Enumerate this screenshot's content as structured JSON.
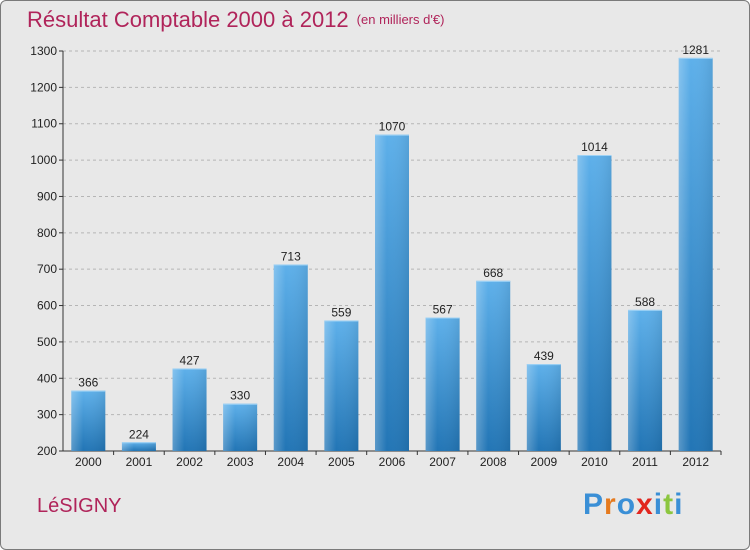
{
  "title": "Résultat Comptable 2000 à 2012",
  "subtitle": "(en milliers d'€)",
  "town": "LéSIGNY",
  "logo": {
    "text": "Proxiti",
    "colors": [
      "#3a8fd6",
      "#e57a1e",
      "#3a8fd6",
      "#e2261e",
      "#3a8fd6",
      "#8cc63f",
      "#3a8fd6"
    ]
  },
  "colors": {
    "title": "#b0245a",
    "bar_light": "#5eb0ea",
    "bar_dark": "#2275b5",
    "background": "#e8e8e8"
  },
  "chart_data": {
    "type": "bar",
    "title": "Résultat Comptable 2000 à 2012",
    "subtitle": "(en milliers d'€)",
    "xlabel": "",
    "ylabel": "",
    "categories": [
      "2000",
      "2001",
      "2002",
      "2003",
      "2004",
      "2005",
      "2006",
      "2007",
      "2008",
      "2009",
      "2010",
      "2011",
      "2012"
    ],
    "values": [
      366,
      224,
      427,
      330,
      713,
      559,
      1070,
      567,
      668,
      439,
      1014,
      588,
      1281
    ],
    "ylim": [
      200,
      1300
    ],
    "yticks": [
      200,
      300,
      400,
      500,
      600,
      700,
      800,
      900,
      1000,
      1100,
      1200,
      1300
    ],
    "grid": "horizontal dashed"
  }
}
